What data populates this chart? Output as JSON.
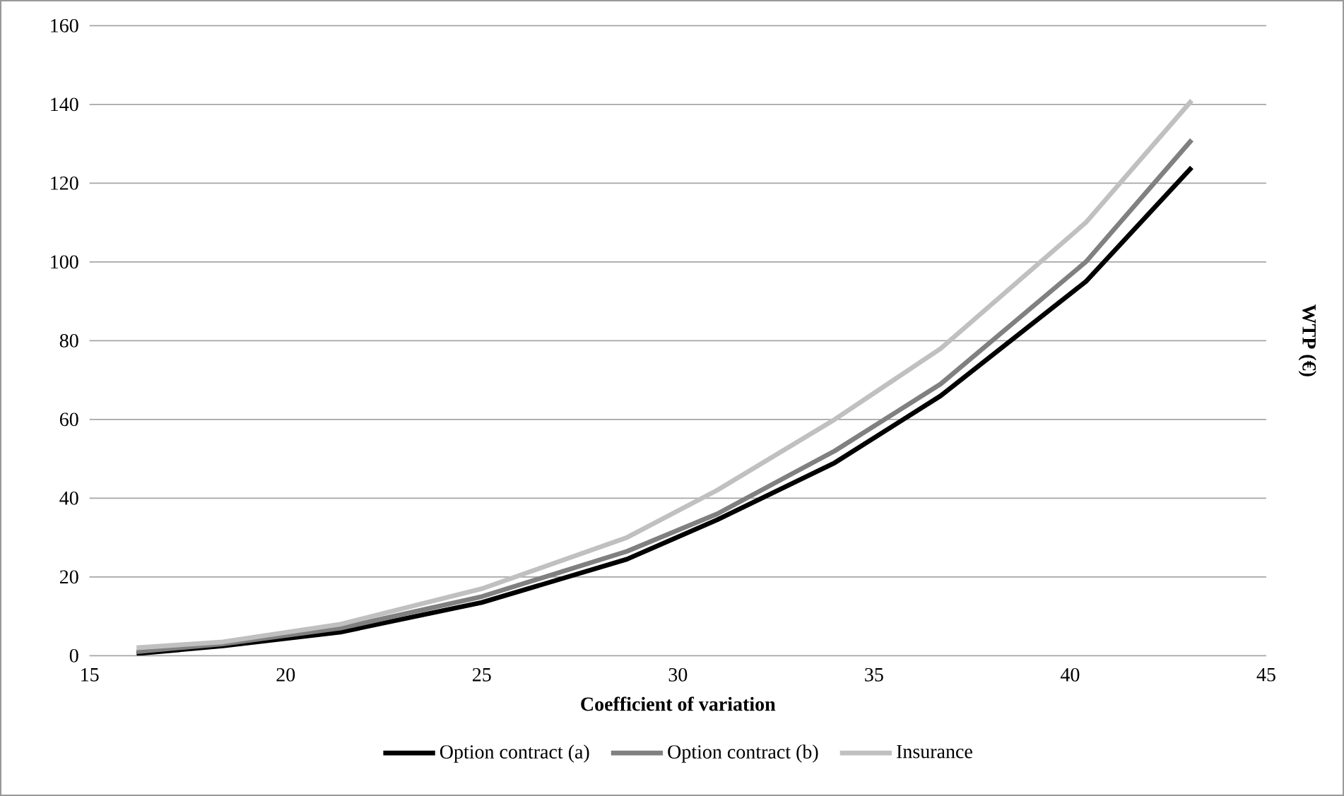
{
  "chart_data": {
    "type": "line",
    "xlabel": "Coefficient of variation",
    "ylabel": "WTP (€)",
    "x": [
      16.2,
      18.4,
      21.4,
      25,
      28.7,
      31,
      34,
      36.7,
      40.4,
      43.1
    ],
    "series": [
      {
        "name": "Option contract (a)",
        "color": "#000000",
        "values": [
          0.5,
          2.5,
          6,
          13.5,
          24.5,
          34.5,
          49,
          66,
          95,
          124
        ]
      },
      {
        "name": "Option contract (b)",
        "color": "#808080",
        "values": [
          1,
          3,
          7,
          15,
          26.5,
          36,
          52,
          69,
          100,
          131
        ]
      },
      {
        "name": "Insurance",
        "color": "#c0c0c0",
        "values": [
          2,
          3.5,
          8,
          17,
          30,
          42,
          60,
          78,
          110,
          141
        ]
      }
    ],
    "xlim": [
      15,
      45
    ],
    "xticks": [
      15,
      20,
      25,
      30,
      35,
      40,
      45
    ],
    "ylim": [
      0,
      160
    ],
    "yticks": [
      0,
      20,
      40,
      60,
      80,
      100,
      120,
      140,
      160
    ],
    "grid": "y",
    "legend": "bottom",
    "marker": "none",
    "line_style": "solid"
  }
}
